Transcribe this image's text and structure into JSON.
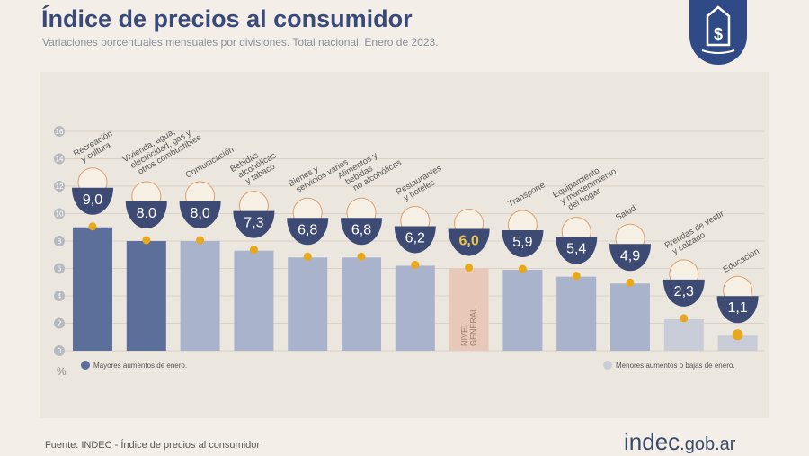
{
  "header": {
    "title": "Índice de precios al consumidor",
    "subtitle": "Variaciones porcentuales mensuales por divisiones. Total nacional. Enero de 2023."
  },
  "footer": {
    "source": "Fuente: INDEC - Índice de precios al consumidor",
    "logo_main": "indec",
    "logo_suffix": ".gob.ar"
  },
  "colors": {
    "high": "#5b6f9a",
    "mid": "#a9b4cc",
    "general": "#e8c9b9",
    "low": "#c8ccd7",
    "bowl": "#3d4a73",
    "dot": "#e8a81c",
    "general_value": "#f0c44a"
  },
  "chart_data": {
    "type": "bar",
    "ylabel": "%",
    "ylim": [
      0,
      16
    ],
    "yticks": [
      0,
      2,
      4,
      6,
      8,
      10,
      12,
      14,
      16
    ],
    "grid": true,
    "categories": [
      "Recreación y cultura",
      "Vivienda, agua, electricidad, gas y otros combustibles",
      "Comunicación",
      "Bebidas alcohólicas y tabaco",
      "Bienes y servicios varios",
      "Alimentos y bebidas no alcohólicas",
      "Restaurantes y hoteles",
      "Nivel general",
      "Transporte",
      "Equipamiento y mantenimiento del hogar",
      "Salud",
      "Prendas de vestir y calzado",
      "Educación"
    ],
    "label_lines": [
      [
        "Recreación",
        "y cultura"
      ],
      [
        "Vivienda, agua,",
        "electricidad, gas y",
        "otros combustibles"
      ],
      [
        "Comunicación"
      ],
      [
        "Bebidas",
        "alcohólicas",
        "y tabaco"
      ],
      [
        "Bienes y",
        "servicios varios"
      ],
      [
        "Alimentos y",
        "bebidas",
        "no alcohólicas"
      ],
      [
        "Restaurantes",
        "y hoteles"
      ],
      [],
      [
        "Transporte"
      ],
      [
        "Equipamiento",
        "y mantenimiento",
        "del hogar"
      ],
      [
        "Salud"
      ],
      [
        "Prendas de vestir",
        "y calzado"
      ],
      [
        "Educación"
      ]
    ],
    "values": [
      9.0,
      8.0,
      8.0,
      7.3,
      6.8,
      6.8,
      6.2,
      6.0,
      5.9,
      5.4,
      4.9,
      2.3,
      1.1
    ],
    "value_labels": [
      "9,0",
      "8,0",
      "8,0",
      "7,3",
      "6,8",
      "6,8",
      "6,2",
      "6,0",
      "5,9",
      "5,4",
      "4,9",
      "2,3",
      "1,1"
    ],
    "groups": [
      "high",
      "high",
      "mid",
      "mid",
      "mid",
      "mid",
      "mid",
      "general",
      "mid",
      "mid",
      "mid",
      "low",
      "low"
    ],
    "general_bar_label": [
      "NIVEL",
      "GENERAL"
    ],
    "legend": [
      {
        "label": "Mayores aumentos de enero.",
        "color": "high"
      },
      {
        "label": "Menores aumentos o bajas de enero.",
        "color": "low"
      }
    ]
  }
}
